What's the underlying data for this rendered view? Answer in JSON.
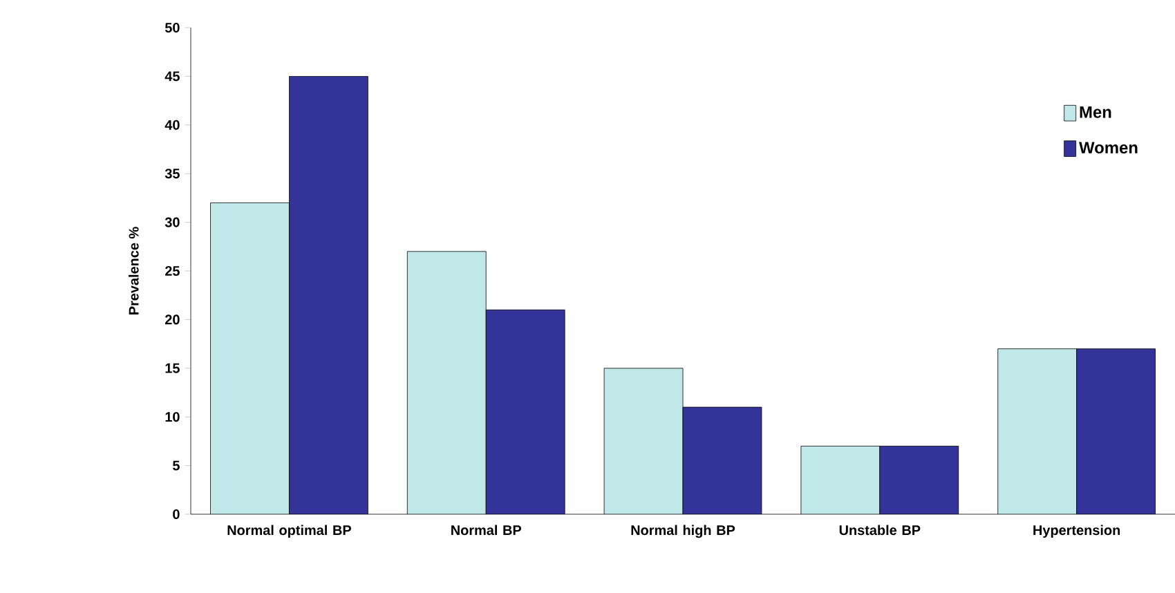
{
  "chart_data": {
    "type": "bar",
    "ylabel": "Prevalence %",
    "categories": [
      "Normal optimal BP",
      "Normal BP",
      "Normal high BP",
      "Unstable BP",
      "Hypertension"
    ],
    "series": [
      {
        "name": "Men",
        "color": "#c0e8e8",
        "values": [
          32,
          27,
          15,
          7,
          17
        ]
      },
      {
        "name": "Women",
        "color": "#333399",
        "values": [
          45,
          21,
          11,
          7,
          17
        ]
      }
    ],
    "ylim": [
      0,
      50
    ],
    "yticks": [
      0,
      5,
      10,
      15,
      20,
      25,
      30,
      35,
      40,
      45,
      50
    ],
    "grid": false,
    "legend": "top right"
  }
}
